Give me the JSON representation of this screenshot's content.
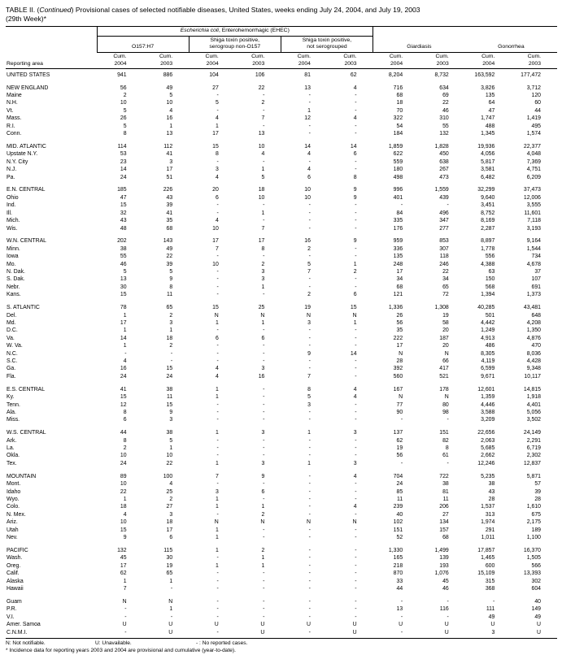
{
  "title": {
    "part1": "TABLE II. (",
    "italic": "Continued",
    "part2": ") Provisional cases of selected notifiable diseases, United States, weeks ending July 24, 2004, and July 19, 2003",
    "line2": "(29th Week)*"
  },
  "header": {
    "reporting_area": "Reporting area",
    "ehec_italic": "Escherichia coli",
    "ehec_rest": ", Enterohemorrhagic (EHEC)",
    "o157": "O157:H7",
    "shiga_non_o157_line1": "Shiga toxin positive,",
    "shiga_non_o157_line2": "serogroup non-O157",
    "shiga_nsg_line1": "Shiga toxin positive,",
    "shiga_nsg_line2": "not serogrouped",
    "giardiasis": "Giardiasis",
    "gonorrhea": "Gonorrhea",
    "year_columns": [
      {
        "label": "Cum.",
        "year": "2004"
      },
      {
        "label": "Cum.",
        "year": "2003"
      },
      {
        "label": "Cum.",
        "year": "2004"
      },
      {
        "label": "Cum.",
        "year": "2003"
      },
      {
        "label": "Cum.",
        "year": "2004"
      },
      {
        "label": "Cum.",
        "year": "2003"
      },
      {
        "label": "Cum.",
        "year": "2004"
      },
      {
        "label": "Cum.",
        "year": "2003"
      },
      {
        "label": "Cum.",
        "year": "2004"
      },
      {
        "label": "Cum.",
        "year": "2003"
      }
    ]
  },
  "rows": [
    {
      "area": "UNITED STATES",
      "type": "national",
      "values": [
        "941",
        "886",
        "104",
        "106",
        "81",
        "62",
        "8,204",
        "8,732",
        "163,592",
        "177,472"
      ]
    },
    {
      "area": "NEW ENGLAND",
      "type": "region",
      "gap_before": true,
      "values": [
        "56",
        "49",
        "27",
        "22",
        "13",
        "4",
        "716",
        "634",
        "3,826",
        "3,712"
      ]
    },
    {
      "area": "Maine",
      "type": "state",
      "values": [
        "2",
        "5",
        "-",
        "-",
        "-",
        "-",
        "68",
        "69",
        "135",
        "120"
      ]
    },
    {
      "area": "N.H.",
      "type": "state",
      "values": [
        "10",
        "10",
        "5",
        "2",
        "-",
        "-",
        "18",
        "22",
        "64",
        "60"
      ]
    },
    {
      "area": "Vt.",
      "type": "state",
      "values": [
        "5",
        "4",
        "-",
        "-",
        "1",
        "-",
        "70",
        "46",
        "47",
        "44"
      ]
    },
    {
      "area": "Mass.",
      "type": "state",
      "values": [
        "26",
        "16",
        "4",
        "7",
        "12",
        "4",
        "322",
        "310",
        "1,747",
        "1,419"
      ]
    },
    {
      "area": "R.I.",
      "type": "state",
      "values": [
        "5",
        "1",
        "1",
        "-",
        "-",
        "-",
        "54",
        "55",
        "488",
        "495"
      ]
    },
    {
      "area": "Conn.",
      "type": "state",
      "values": [
        "8",
        "13",
        "17",
        "13",
        "-",
        "-",
        "184",
        "132",
        "1,345",
        "1,574"
      ]
    },
    {
      "area": "MID. ATLANTIC",
      "type": "region",
      "gap_before": true,
      "values": [
        "114",
        "112",
        "15",
        "10",
        "14",
        "14",
        "1,859",
        "1,828",
        "19,936",
        "22,377"
      ]
    },
    {
      "area": "Upstate N.Y.",
      "type": "state",
      "values": [
        "53",
        "41",
        "8",
        "4",
        "4",
        "6",
        "622",
        "450",
        "4,056",
        "4,048"
      ]
    },
    {
      "area": "N.Y. City",
      "type": "state",
      "values": [
        "23",
        "3",
        "-",
        "-",
        "-",
        "-",
        "559",
        "638",
        "5,817",
        "7,369"
      ]
    },
    {
      "area": "N.J.",
      "type": "state",
      "values": [
        "14",
        "17",
        "3",
        "1",
        "4",
        "-",
        "180",
        "267",
        "3,581",
        "4,751"
      ]
    },
    {
      "area": "Pa.",
      "type": "state",
      "values": [
        "24",
        "51",
        "4",
        "5",
        "6",
        "8",
        "498",
        "473",
        "6,482",
        "6,209"
      ]
    },
    {
      "area": "E.N. CENTRAL",
      "type": "region",
      "gap_before": true,
      "values": [
        "185",
        "226",
        "20",
        "18",
        "10",
        "9",
        "996",
        "1,559",
        "32,299",
        "37,473"
      ]
    },
    {
      "area": "Ohio",
      "type": "state",
      "values": [
        "47",
        "43",
        "6",
        "10",
        "10",
        "9",
        "401",
        "439",
        "9,640",
        "12,006"
      ]
    },
    {
      "area": "Ind.",
      "type": "state",
      "values": [
        "15",
        "39",
        "-",
        "-",
        "-",
        "-",
        "-",
        "-",
        "3,451",
        "3,555"
      ]
    },
    {
      "area": "Ill.",
      "type": "state",
      "values": [
        "32",
        "41",
        "-",
        "1",
        "-",
        "-",
        "84",
        "496",
        "8,752",
        "11,601"
      ]
    },
    {
      "area": "Mich.",
      "type": "state",
      "values": [
        "43",
        "35",
        "4",
        "-",
        "-",
        "-",
        "335",
        "347",
        "8,169",
        "7,118"
      ]
    },
    {
      "area": "Wis.",
      "type": "state",
      "values": [
        "48",
        "68",
        "10",
        "7",
        "-",
        "-",
        "176",
        "277",
        "2,287",
        "3,193"
      ]
    },
    {
      "area": "W.N. CENTRAL",
      "type": "region",
      "gap_before": true,
      "values": [
        "202",
        "143",
        "17",
        "17",
        "16",
        "9",
        "959",
        "853",
        "8,897",
        "9,164"
      ]
    },
    {
      "area": "Minn.",
      "type": "state",
      "values": [
        "38",
        "49",
        "7",
        "8",
        "2",
        "-",
        "336",
        "307",
        "1,778",
        "1,544"
      ]
    },
    {
      "area": "Iowa",
      "type": "state",
      "values": [
        "55",
        "22",
        "-",
        "-",
        "-",
        "-",
        "135",
        "118",
        "556",
        "734"
      ]
    },
    {
      "area": "Mo.",
      "type": "state",
      "values": [
        "46",
        "39",
        "10",
        "2",
        "5",
        "1",
        "248",
        "246",
        "4,388",
        "4,678"
      ]
    },
    {
      "area": "N. Dak.",
      "type": "state",
      "values": [
        "5",
        "5",
        "-",
        "3",
        "7",
        "2",
        "17",
        "22",
        "63",
        "37"
      ]
    },
    {
      "area": "S. Dak.",
      "type": "state",
      "values": [
        "13",
        "9",
        "-",
        "3",
        "-",
        "-",
        "34",
        "34",
        "150",
        "107"
      ]
    },
    {
      "area": "Nebr.",
      "type": "state",
      "values": [
        "30",
        "8",
        "-",
        "1",
        "-",
        "-",
        "68",
        "65",
        "568",
        "691"
      ]
    },
    {
      "area": "Kans.",
      "type": "state",
      "values": [
        "15",
        "11",
        "-",
        "-",
        "2",
        "6",
        "121",
        "72",
        "1,394",
        "1,373"
      ]
    },
    {
      "area": "S. ATLANTIC",
      "type": "region",
      "gap_before": true,
      "values": [
        "78",
        "65",
        "15",
        "25",
        "19",
        "15",
        "1,336",
        "1,308",
        "40,285",
        "43,481"
      ]
    },
    {
      "area": "Del.",
      "type": "state",
      "values": [
        "1",
        "2",
        "N",
        "N",
        "N",
        "N",
        "26",
        "19",
        "501",
        "648"
      ]
    },
    {
      "area": "Md.",
      "type": "state",
      "values": [
        "17",
        "3",
        "1",
        "1",
        "3",
        "1",
        "56",
        "58",
        "4,442",
        "4,208"
      ]
    },
    {
      "area": "D.C.",
      "type": "state",
      "values": [
        "1",
        "1",
        "-",
        "-",
        "-",
        "-",
        "35",
        "20",
        "1,249",
        "1,350"
      ]
    },
    {
      "area": "Va.",
      "type": "state",
      "values": [
        "14",
        "18",
        "6",
        "6",
        "-",
        "-",
        "222",
        "187",
        "4,913",
        "4,876"
      ]
    },
    {
      "area": "W. Va.",
      "type": "state",
      "values": [
        "1",
        "2",
        "-",
        "-",
        "-",
        "-",
        "17",
        "20",
        "486",
        "470"
      ]
    },
    {
      "area": "N.C.",
      "type": "state",
      "values": [
        "-",
        "-",
        "-",
        "-",
        "9",
        "14",
        "N",
        "N",
        "8,305",
        "8,036"
      ]
    },
    {
      "area": "S.C.",
      "type": "state",
      "values": [
        "4",
        "-",
        "-",
        "-",
        "-",
        "-",
        "28",
        "66",
        "4,119",
        "4,428"
      ]
    },
    {
      "area": "Ga.",
      "type": "state",
      "values": [
        "16",
        "15",
        "4",
        "3",
        "-",
        "-",
        "392",
        "417",
        "6,599",
        "9,348"
      ]
    },
    {
      "area": "Fla.",
      "type": "state",
      "values": [
        "24",
        "24",
        "4",
        "16",
        "7",
        "-",
        "560",
        "521",
        "9,671",
        "10,117"
      ]
    },
    {
      "area": "E.S. CENTRAL",
      "type": "region",
      "gap_before": true,
      "values": [
        "41",
        "38",
        "1",
        "-",
        "8",
        "4",
        "167",
        "178",
        "12,601",
        "14,815"
      ]
    },
    {
      "area": "Ky.",
      "type": "state",
      "values": [
        "15",
        "11",
        "1",
        "-",
        "5",
        "4",
        "N",
        "N",
        "1,359",
        "1,918"
      ]
    },
    {
      "area": "Tenn.",
      "type": "state",
      "values": [
        "12",
        "15",
        "-",
        "-",
        "3",
        "-",
        "77",
        "80",
        "4,446",
        "4,401"
      ]
    },
    {
      "area": "Ala.",
      "type": "state",
      "values": [
        "8",
        "9",
        "-",
        "-",
        "-",
        "-",
        "90",
        "98",
        "3,588",
        "5,056"
      ]
    },
    {
      "area": "Miss.",
      "type": "state",
      "values": [
        "6",
        "3",
        "-",
        "-",
        "-",
        "-",
        "-",
        "-",
        "3,209",
        "3,502"
      ]
    },
    {
      "area": "W.S. CENTRAL",
      "type": "region",
      "gap_before": true,
      "values": [
        "44",
        "38",
        "1",
        "3",
        "1",
        "3",
        "137",
        "151",
        "22,656",
        "24,149"
      ]
    },
    {
      "area": "Ark.",
      "type": "state",
      "values": [
        "8",
        "5",
        "-",
        "-",
        "-",
        "-",
        "62",
        "82",
        "2,063",
        "2,291"
      ]
    },
    {
      "area": "La.",
      "type": "state",
      "values": [
        "2",
        "1",
        "-",
        "-",
        "-",
        "-",
        "19",
        "8",
        "5,685",
        "6,719"
      ]
    },
    {
      "area": "Okla.",
      "type": "state",
      "values": [
        "10",
        "10",
        "-",
        "-",
        "-",
        "-",
        "56",
        "61",
        "2,662",
        "2,302"
      ]
    },
    {
      "area": "Tex.",
      "type": "state",
      "values": [
        "24",
        "22",
        "1",
        "3",
        "1",
        "3",
        "-",
        "-",
        "12,246",
        "12,837"
      ]
    },
    {
      "area": "MOUNTAIN",
      "type": "region",
      "gap_before": true,
      "values": [
        "89",
        "100",
        "7",
        "9",
        "-",
        "4",
        "704",
        "722",
        "5,235",
        "5,871"
      ]
    },
    {
      "area": "Mont.",
      "type": "state",
      "values": [
        "10",
        "4",
        "-",
        "-",
        "-",
        "-",
        "24",
        "38",
        "38",
        "57"
      ]
    },
    {
      "area": "Idaho",
      "type": "state",
      "values": [
        "22",
        "25",
        "3",
        "6",
        "-",
        "-",
        "85",
        "81",
        "43",
        "39"
      ]
    },
    {
      "area": "Wyo.",
      "type": "state",
      "values": [
        "1",
        "2",
        "1",
        "-",
        "-",
        "-",
        "11",
        "11",
        "28",
        "28"
      ]
    },
    {
      "area": "Colo.",
      "type": "state",
      "values": [
        "18",
        "27",
        "1",
        "1",
        "-",
        "4",
        "239",
        "206",
        "1,537",
        "1,610"
      ]
    },
    {
      "area": "N. Mex.",
      "type": "state",
      "values": [
        "4",
        "3",
        "-",
        "2",
        "-",
        "-",
        "40",
        "27",
        "313",
        "675"
      ]
    },
    {
      "area": "Ariz.",
      "type": "state",
      "values": [
        "10",
        "18",
        "N",
        "N",
        "N",
        "N",
        "102",
        "134",
        "1,974",
        "2,175"
      ]
    },
    {
      "area": "Utah",
      "type": "state",
      "values": [
        "15",
        "17",
        "1",
        "-",
        "-",
        "-",
        "151",
        "157",
        "291",
        "189"
      ]
    },
    {
      "area": "Nev.",
      "type": "state",
      "values": [
        "9",
        "6",
        "1",
        "-",
        "-",
        "-",
        "52",
        "68",
        "1,011",
        "1,100"
      ]
    },
    {
      "area": "PACIFIC",
      "type": "region",
      "gap_before": true,
      "values": [
        "132",
        "115",
        "1",
        "2",
        "-",
        "-",
        "1,330",
        "1,499",
        "17,857",
        "16,370"
      ]
    },
    {
      "area": "Wash.",
      "type": "state",
      "values": [
        "45",
        "30",
        "-",
        "1",
        "-",
        "-",
        "165",
        "139",
        "1,465",
        "1,505"
      ]
    },
    {
      "area": "Oreg.",
      "type": "state",
      "values": [
        "17",
        "19",
        "1",
        "1",
        "-",
        "-",
        "218",
        "193",
        "600",
        "566"
      ]
    },
    {
      "area": "Calif.",
      "type": "state",
      "values": [
        "62",
        "65",
        "-",
        "-",
        "-",
        "-",
        "870",
        "1,076",
        "15,109",
        "13,393"
      ]
    },
    {
      "area": "Alaska",
      "type": "state",
      "values": [
        "1",
        "1",
        "-",
        "-",
        "-",
        "-",
        "33",
        "45",
        "315",
        "302"
      ]
    },
    {
      "area": "Hawaii",
      "type": "state",
      "values": [
        "7",
        "-",
        "-",
        "-",
        "-",
        "-",
        "44",
        "46",
        "368",
        "604"
      ]
    },
    {
      "area": "Guam",
      "type": "territory",
      "gap_before": true,
      "values": [
        "N",
        "N",
        "-",
        "-",
        "-",
        "-",
        "-",
        "-",
        "-",
        "40"
      ]
    },
    {
      "area": "P.R.",
      "type": "territory",
      "values": [
        "-",
        "1",
        "-",
        "-",
        "-",
        "-",
        "13",
        "116",
        "111",
        "149"
      ]
    },
    {
      "area": "V.I.",
      "type": "territory",
      "values": [
        "-",
        "-",
        "-",
        "-",
        "-",
        "-",
        "-",
        "-",
        "49",
        "49"
      ]
    },
    {
      "area": "Amer. Samoa",
      "type": "territory",
      "values": [
        "U",
        "U",
        "U",
        "U",
        "U",
        "U",
        "U",
        "U",
        "U",
        "U"
      ]
    },
    {
      "area": "C.N.M.I.",
      "type": "territory",
      "values": [
        "-",
        "U",
        "-",
        "U",
        "-",
        "U",
        "-",
        "U",
        "3",
        "U"
      ]
    }
  ],
  "footnotes": {
    "legend": [
      "N: Not notifiable.",
      "U: Unavailable.",
      "- : No reported cases."
    ],
    "note": "* Incidence data for reporting years 2003 and 2004 are provisional and cumulative (year-to-date)."
  }
}
